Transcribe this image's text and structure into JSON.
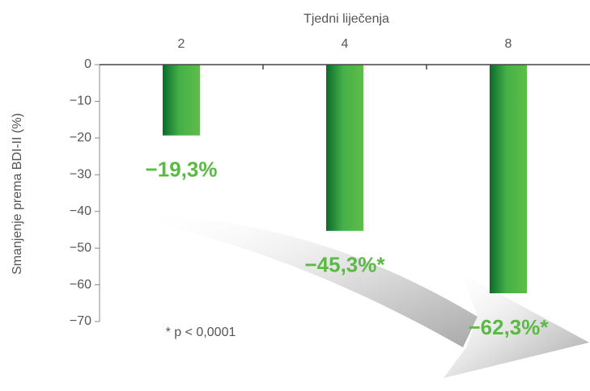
{
  "chart_data": {
    "type": "bar",
    "title": "Tjedni liječenja",
    "y_label": "Smanjenje prema BDI-II (%)",
    "categories": [
      "2",
      "4",
      "8"
    ],
    "values": [
      -19.3,
      -45.3,
      -62.3
    ],
    "value_labels": [
      "−19,3%",
      "−45,3%*",
      "−62,3%*"
    ],
    "color": "#5cb946",
    "ylim": [
      -70,
      0
    ],
    "yticks": [
      0,
      {
        "value": -10,
        "label": "−10"
      },
      {
        "value": -20,
        "label": "−20"
      },
      {
        "value": -30,
        "label": "−30"
      },
      {
        "value": -40,
        "label": "−40"
      },
      {
        "value": -50,
        "label": "−50"
      },
      {
        "value": -60,
        "label": "−60"
      },
      {
        "value": -70,
        "label": "−70"
      }
    ],
    "footnote": "* p < 0,0001"
  }
}
